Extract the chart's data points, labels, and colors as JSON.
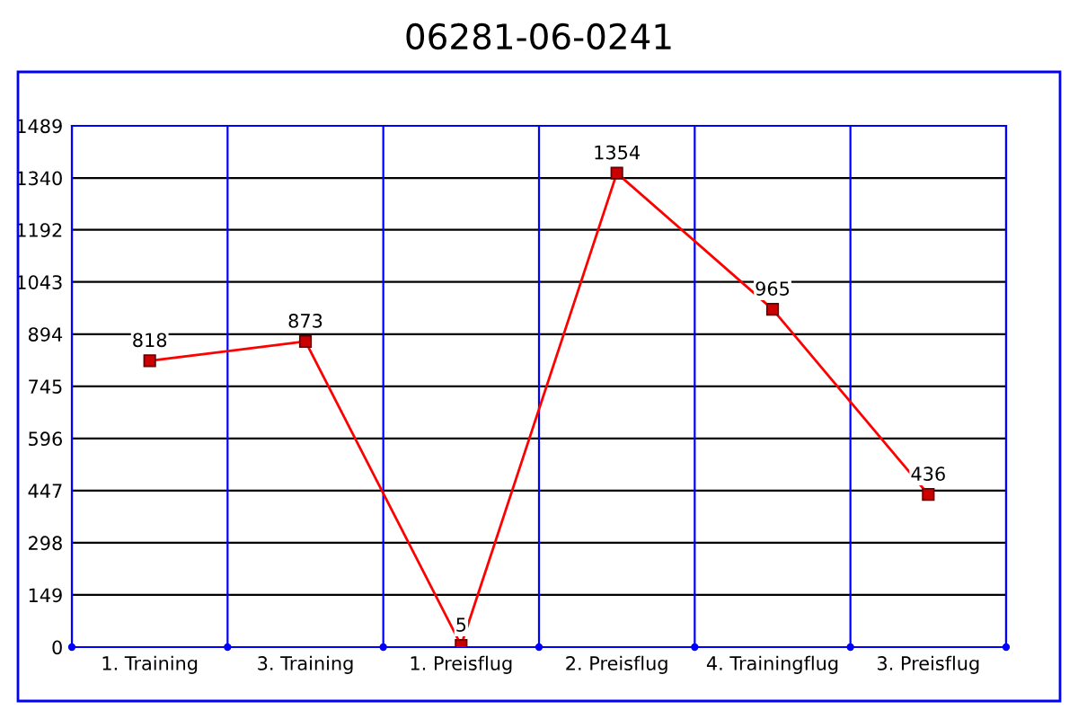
{
  "chart_data": {
    "type": "line",
    "title": "06281-06-0241",
    "categories": [
      "1. Training",
      "3. Training",
      "1. Preisflug",
      "2. Preisflug",
      "4. Trainingflug",
      "3. Preisflug"
    ],
    "series": [
      {
        "color": "#ff0000",
        "values": [
          818,
          873,
          5,
          1354,
          965,
          436
        ]
      }
    ],
    "ylim": [
      0,
      1489
    ],
    "yticks": [
      0,
      149,
      298,
      447,
      596,
      745,
      894,
      1043,
      1192,
      1340,
      1489
    ],
    "grid": true,
    "marker": "square",
    "line_style": "solid",
    "data_labels": true
  }
}
